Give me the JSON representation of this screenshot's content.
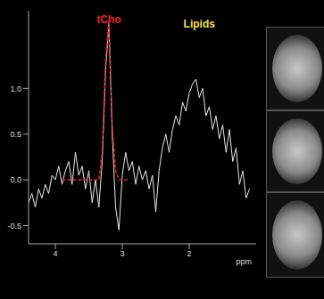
{
  "chart_data": {
    "type": "line",
    "xlabel": "ppm",
    "xlim": [
      4.4,
      1.0
    ],
    "xticks": [
      4,
      3,
      2
    ],
    "ylim": [
      -0.7,
      1.85
    ],
    "yticks": [
      {
        "value": -0.5,
        "label": "-0.5"
      },
      {
        "value": 0,
        "label": "0.0"
      },
      {
        "value": 0.5,
        "label": "0.5"
      },
      {
        "value": 1,
        "label": "1.0"
      }
    ],
    "grid": false,
    "x": [
      4.4,
      4.35,
      4.3,
      4.25,
      4.2,
      4.15,
      4.1,
      4.05,
      4.0,
      3.95,
      3.9,
      3.85,
      3.8,
      3.75,
      3.7,
      3.65,
      3.6,
      3.55,
      3.5,
      3.45,
      3.4,
      3.35,
      3.3,
      3.25,
      3.2,
      3.15,
      3.1,
      3.05,
      3.0,
      2.95,
      2.9,
      2.85,
      2.8,
      2.75,
      2.7,
      2.65,
      2.6,
      2.55,
      2.5,
      2.45,
      2.4,
      2.35,
      2.3,
      2.25,
      2.2,
      2.15,
      2.1,
      2.05,
      2.0,
      1.95,
      1.9,
      1.85,
      1.8,
      1.75,
      1.7,
      1.65,
      1.6,
      1.55,
      1.5,
      1.45,
      1.4,
      1.35,
      1.3,
      1.25,
      1.2,
      1.15,
      1.1
    ],
    "series": [
      {
        "color": "#e8e8e8",
        "line_style": "solid",
        "values": [
          -0.25,
          -0.15,
          -0.3,
          -0.1,
          -0.2,
          -0.05,
          -0.15,
          0.05,
          0.0,
          0.15,
          -0.05,
          0.1,
          0.2,
          -0.05,
          0.3,
          0.05,
          0.15,
          -0.1,
          0.1,
          -0.25,
          0.0,
          -0.3,
          0.2,
          1.2,
          1.7,
          0.5,
          -0.3,
          -0.55,
          0.05,
          0.3,
          0.1,
          0.2,
          -0.05,
          0.15,
          0.0,
          0.1,
          -0.1,
          0.05,
          -0.35,
          0.1,
          0.35,
          0.5,
          0.3,
          0.55,
          0.7,
          0.6,
          0.85,
          0.75,
          0.95,
          1.05,
          1.1,
          0.9,
          1.0,
          0.7,
          0.8,
          0.55,
          0.7,
          0.45,
          0.6,
          0.3,
          0.55,
          0.2,
          0.35,
          -0.05,
          0.1,
          -0.2,
          -0.1
        ]
      },
      {
        "color": "#e8202a",
        "line_style": "dashed",
        "values": [
          null,
          null,
          null,
          null,
          null,
          null,
          null,
          null,
          null,
          null,
          0.0,
          0.0,
          0.0,
          0.0,
          0.0,
          0.0,
          0.0,
          0.0,
          0.0,
          0.0,
          0.0,
          0.0,
          0.3,
          1.3,
          1.75,
          0.6,
          0.1,
          0.0,
          0.0,
          0.0,
          0.0,
          null,
          null,
          null,
          null,
          null,
          null,
          null,
          null,
          null,
          null,
          null,
          null,
          null,
          null,
          null,
          null,
          null,
          null,
          null,
          null,
          null,
          null,
          null,
          null,
          null,
          null,
          null,
          null,
          null,
          null,
          null,
          null,
          null,
          null,
          null,
          null
        ]
      }
    ],
    "annotations": [
      {
        "text": "tCho",
        "x": 3.2,
        "y": 1.85,
        "color": "#e8202a"
      },
      {
        "text": "Lipids",
        "x": 1.85,
        "y": 1.8,
        "color": "#f0e040"
      }
    ]
  }
}
